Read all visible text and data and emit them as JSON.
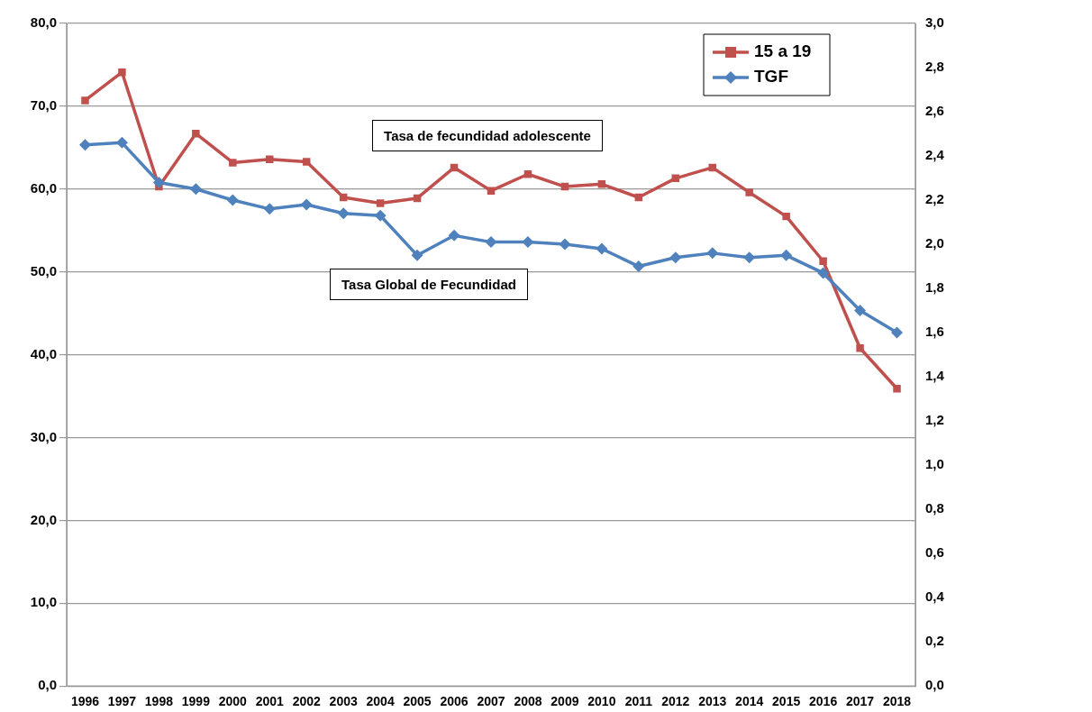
{
  "chart_data": {
    "type": "line",
    "categories": [
      "1996",
      "1997",
      "1998",
      "1999",
      "2000",
      "2001",
      "2002",
      "2003",
      "2004",
      "2005",
      "2006",
      "2007",
      "2008",
      "2009",
      "2010",
      "2011",
      "2012",
      "2013",
      "2014",
      "2015",
      "2016",
      "2017",
      "2018"
    ],
    "series": [
      {
        "name": "15 a 19",
        "color": "#c0504d",
        "marker": "square",
        "values": [
          70.7,
          74.1,
          60.3,
          66.7,
          63.2,
          63.6,
          63.3,
          59.0,
          58.3,
          58.9,
          62.6,
          59.8,
          61.8,
          60.3,
          60.6,
          59.0,
          61.3,
          62.6,
          59.6,
          56.7,
          51.3,
          40.8,
          35.9
        ]
      },
      {
        "name": "TGF",
        "color": "#4f81bd",
        "marker": "diamond",
        "axis": "y2",
        "values": [
          2.45,
          2.46,
          2.28,
          2.25,
          2.2,
          2.16,
          2.18,
          2.14,
          2.13,
          1.95,
          2.04,
          2.01,
          2.01,
          2.0,
          1.98,
          1.9,
          1.94,
          1.96,
          1.94,
          1.95,
          1.87,
          1.7,
          1.6
        ]
      }
    ],
    "ylim": [
      0,
      80
    ],
    "yticks": [
      {
        "value": 0,
        "label": "0,0"
      },
      {
        "value": 10,
        "label": "10,0"
      },
      {
        "value": 20,
        "label": "20,0"
      },
      {
        "value": 30,
        "label": "30,0"
      },
      {
        "value": 40,
        "label": "40,0"
      },
      {
        "value": 50,
        "label": "50,0"
      },
      {
        "value": 60,
        "label": "60,0"
      },
      {
        "value": 70,
        "label": "70,0"
      },
      {
        "value": 80,
        "label": "80,0"
      }
    ],
    "y2lim": [
      0,
      3
    ],
    "y2ticks": [
      {
        "value": 0,
        "label": "0,0"
      },
      {
        "value": 0.2,
        "label": "0,2"
      },
      {
        "value": 0.4,
        "label": "0,4"
      },
      {
        "value": 0.6,
        "label": "0,6"
      },
      {
        "value": 0.8,
        "label": "0,8"
      },
      {
        "value": 1,
        "label": "1,0"
      },
      {
        "value": 1.2,
        "label": "1,2"
      },
      {
        "value": 1.4,
        "label": "1,4"
      },
      {
        "value": 1.6,
        "label": "1,6"
      },
      {
        "value": 1.8,
        "label": "1,8"
      },
      {
        "value": 2,
        "label": "2,0"
      },
      {
        "value": 2.2,
        "label": "2,2"
      },
      {
        "value": 2.4,
        "label": "2,4"
      },
      {
        "value": 2.6,
        "label": "2,6"
      },
      {
        "value": 2.8,
        "label": "2,8"
      },
      {
        "value": 3,
        "label": "3,0"
      }
    ],
    "grid": "y",
    "legend": "top right",
    "line_style": "solid",
    "annotations": [
      "Tasa de fecundidad adolescente",
      "Tasa Global de Fecundidad"
    ]
  }
}
